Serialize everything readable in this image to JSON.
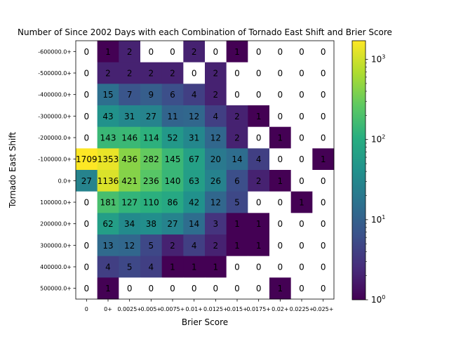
{
  "chart_data": {
    "type": "heatmap",
    "title": "Number of Since 2002 Days with each Combination of Tornado East Shift and Brier Score",
    "xlabel": "Brier Score",
    "ylabel": "Tornado East Shift",
    "x_categories": [
      "0",
      "0+",
      "0.0025+",
      "0.005+",
      "0.0075+",
      "0.01+",
      "0.0125+",
      "0.015+",
      "0.0175+",
      "0.02+",
      "0.0225+",
      "0.025+"
    ],
    "x_tick_labels": [
      "0",
      "0+",
      "0.0025+",
      "0.005+",
      "0.0075+",
      "0.01+",
      "0.0125+",
      "0.015+",
      "0.0175+",
      "0.02+",
      "0.0225+",
      "0.025+"
    ],
    "y_categories": [
      "-600000.0+",
      "-500000.0+",
      "-400000.0+",
      "-300000.0+",
      "-200000.0+",
      "-100000.0+",
      "0.0+",
      "100000.0+",
      "200000.0+",
      "300000.0+",
      "400000.0+",
      "500000.0+"
    ],
    "values": [
      [
        0,
        1,
        2,
        0,
        0,
        2,
        0,
        1,
        0,
        0,
        0,
        0
      ],
      [
        0,
        2,
        2,
        2,
        2,
        0,
        2,
        0,
        0,
        0,
        0,
        0
      ],
      [
        0,
        15,
        7,
        9,
        6,
        4,
        2,
        0,
        0,
        0,
        0,
        0
      ],
      [
        0,
        43,
        31,
        27,
        11,
        12,
        4,
        2,
        1,
        0,
        0,
        0
      ],
      [
        0,
        143,
        146,
        114,
        52,
        31,
        12,
        2,
        0,
        1,
        0,
        0
      ],
      [
        1709,
        1353,
        436,
        282,
        145,
        67,
        20,
        14,
        4,
        0,
        0,
        1
      ],
      [
        27,
        1136,
        421,
        236,
        140,
        63,
        26,
        6,
        2,
        1,
        0,
        0
      ],
      [
        0,
        181,
        127,
        110,
        86,
        42,
        12,
        5,
        0,
        0,
        1,
        0
      ],
      [
        0,
        62,
        34,
        38,
        27,
        14,
        3,
        1,
        1,
        0,
        0,
        0
      ],
      [
        0,
        13,
        12,
        5,
        2,
        4,
        2,
        1,
        1,
        0,
        0,
        0
      ],
      [
        0,
        4,
        5,
        4,
        1,
        1,
        1,
        0,
        0,
        0,
        0,
        0
      ],
      [
        0,
        1,
        0,
        0,
        0,
        0,
        0,
        0,
        0,
        1,
        0,
        0
      ]
    ],
    "colormap": "viridis",
    "color_scale": "log",
    "zero_color": "#ffffff",
    "colorbar_range": [
      1,
      1709
    ],
    "colorbar_ticks": [
      {
        "base": "10",
        "exp": "0",
        "value": 1
      },
      {
        "base": "10",
        "exp": "1",
        "value": 10
      },
      {
        "base": "10",
        "exp": "2",
        "value": 100
      },
      {
        "base": "10",
        "exp": "3",
        "value": 1000
      }
    ],
    "grid": false
  }
}
